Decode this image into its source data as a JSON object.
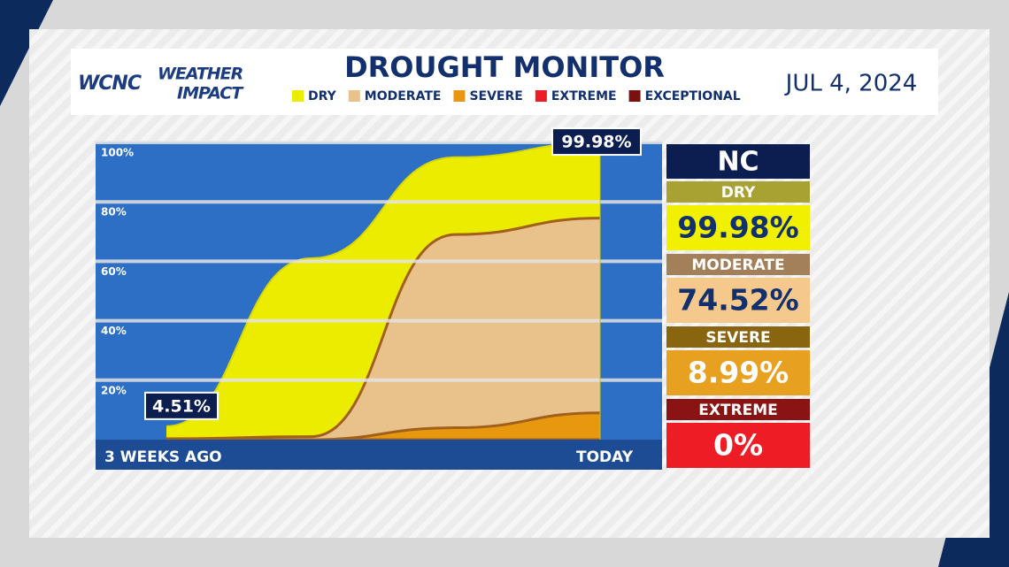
{
  "header": {
    "logo": "WCNC",
    "brand_top": "WEATHER",
    "brand_bottom": "IMPACT",
    "title": "DROUGHT MONITOR",
    "date": "JUL 4, 2024"
  },
  "panel": {
    "title": "NC"
  },
  "chart_data": {
    "type": "area",
    "categories": [
      "3 WEEKS AGO",
      null,
      null,
      "TODAY"
    ],
    "series": [
      {
        "name": "DRY",
        "color": "#ecec00",
        "values": [
          4.51,
          61,
          95,
          99.98
        ],
        "value_labels": [
          "4.51%",
          null,
          null,
          "99.98%"
        ]
      },
      {
        "name": "MODERATE",
        "color": "#e9c18a",
        "values": [
          0.3,
          1,
          69,
          74.52
        ],
        "value_labels": [
          null,
          null,
          null,
          "74.52%"
        ]
      },
      {
        "name": "SEVERE",
        "color": "#e8980f",
        "values": [
          0,
          0,
          4,
          8.99
        ],
        "value_labels": [
          null,
          null,
          null,
          "8.99%"
        ]
      },
      {
        "name": "EXTREME",
        "color": "#ee1c25",
        "values": [
          0,
          0,
          0,
          0
        ],
        "value_labels": [
          null,
          null,
          null,
          "0%"
        ]
      },
      {
        "name": "EXCEPTIONAL",
        "color": "#7a1010",
        "values": [
          0,
          0,
          0,
          0
        ]
      }
    ],
    "ylim": [
      0,
      100
    ],
    "yticks": [
      {
        "value": 20,
        "label": "20%"
      },
      {
        "value": 40,
        "label": "40%"
      },
      {
        "value": 60,
        "label": "60%"
      },
      {
        "value": 80,
        "label": "80%"
      },
      {
        "value": 100,
        "label": "100%"
      }
    ],
    "grid": true
  }
}
